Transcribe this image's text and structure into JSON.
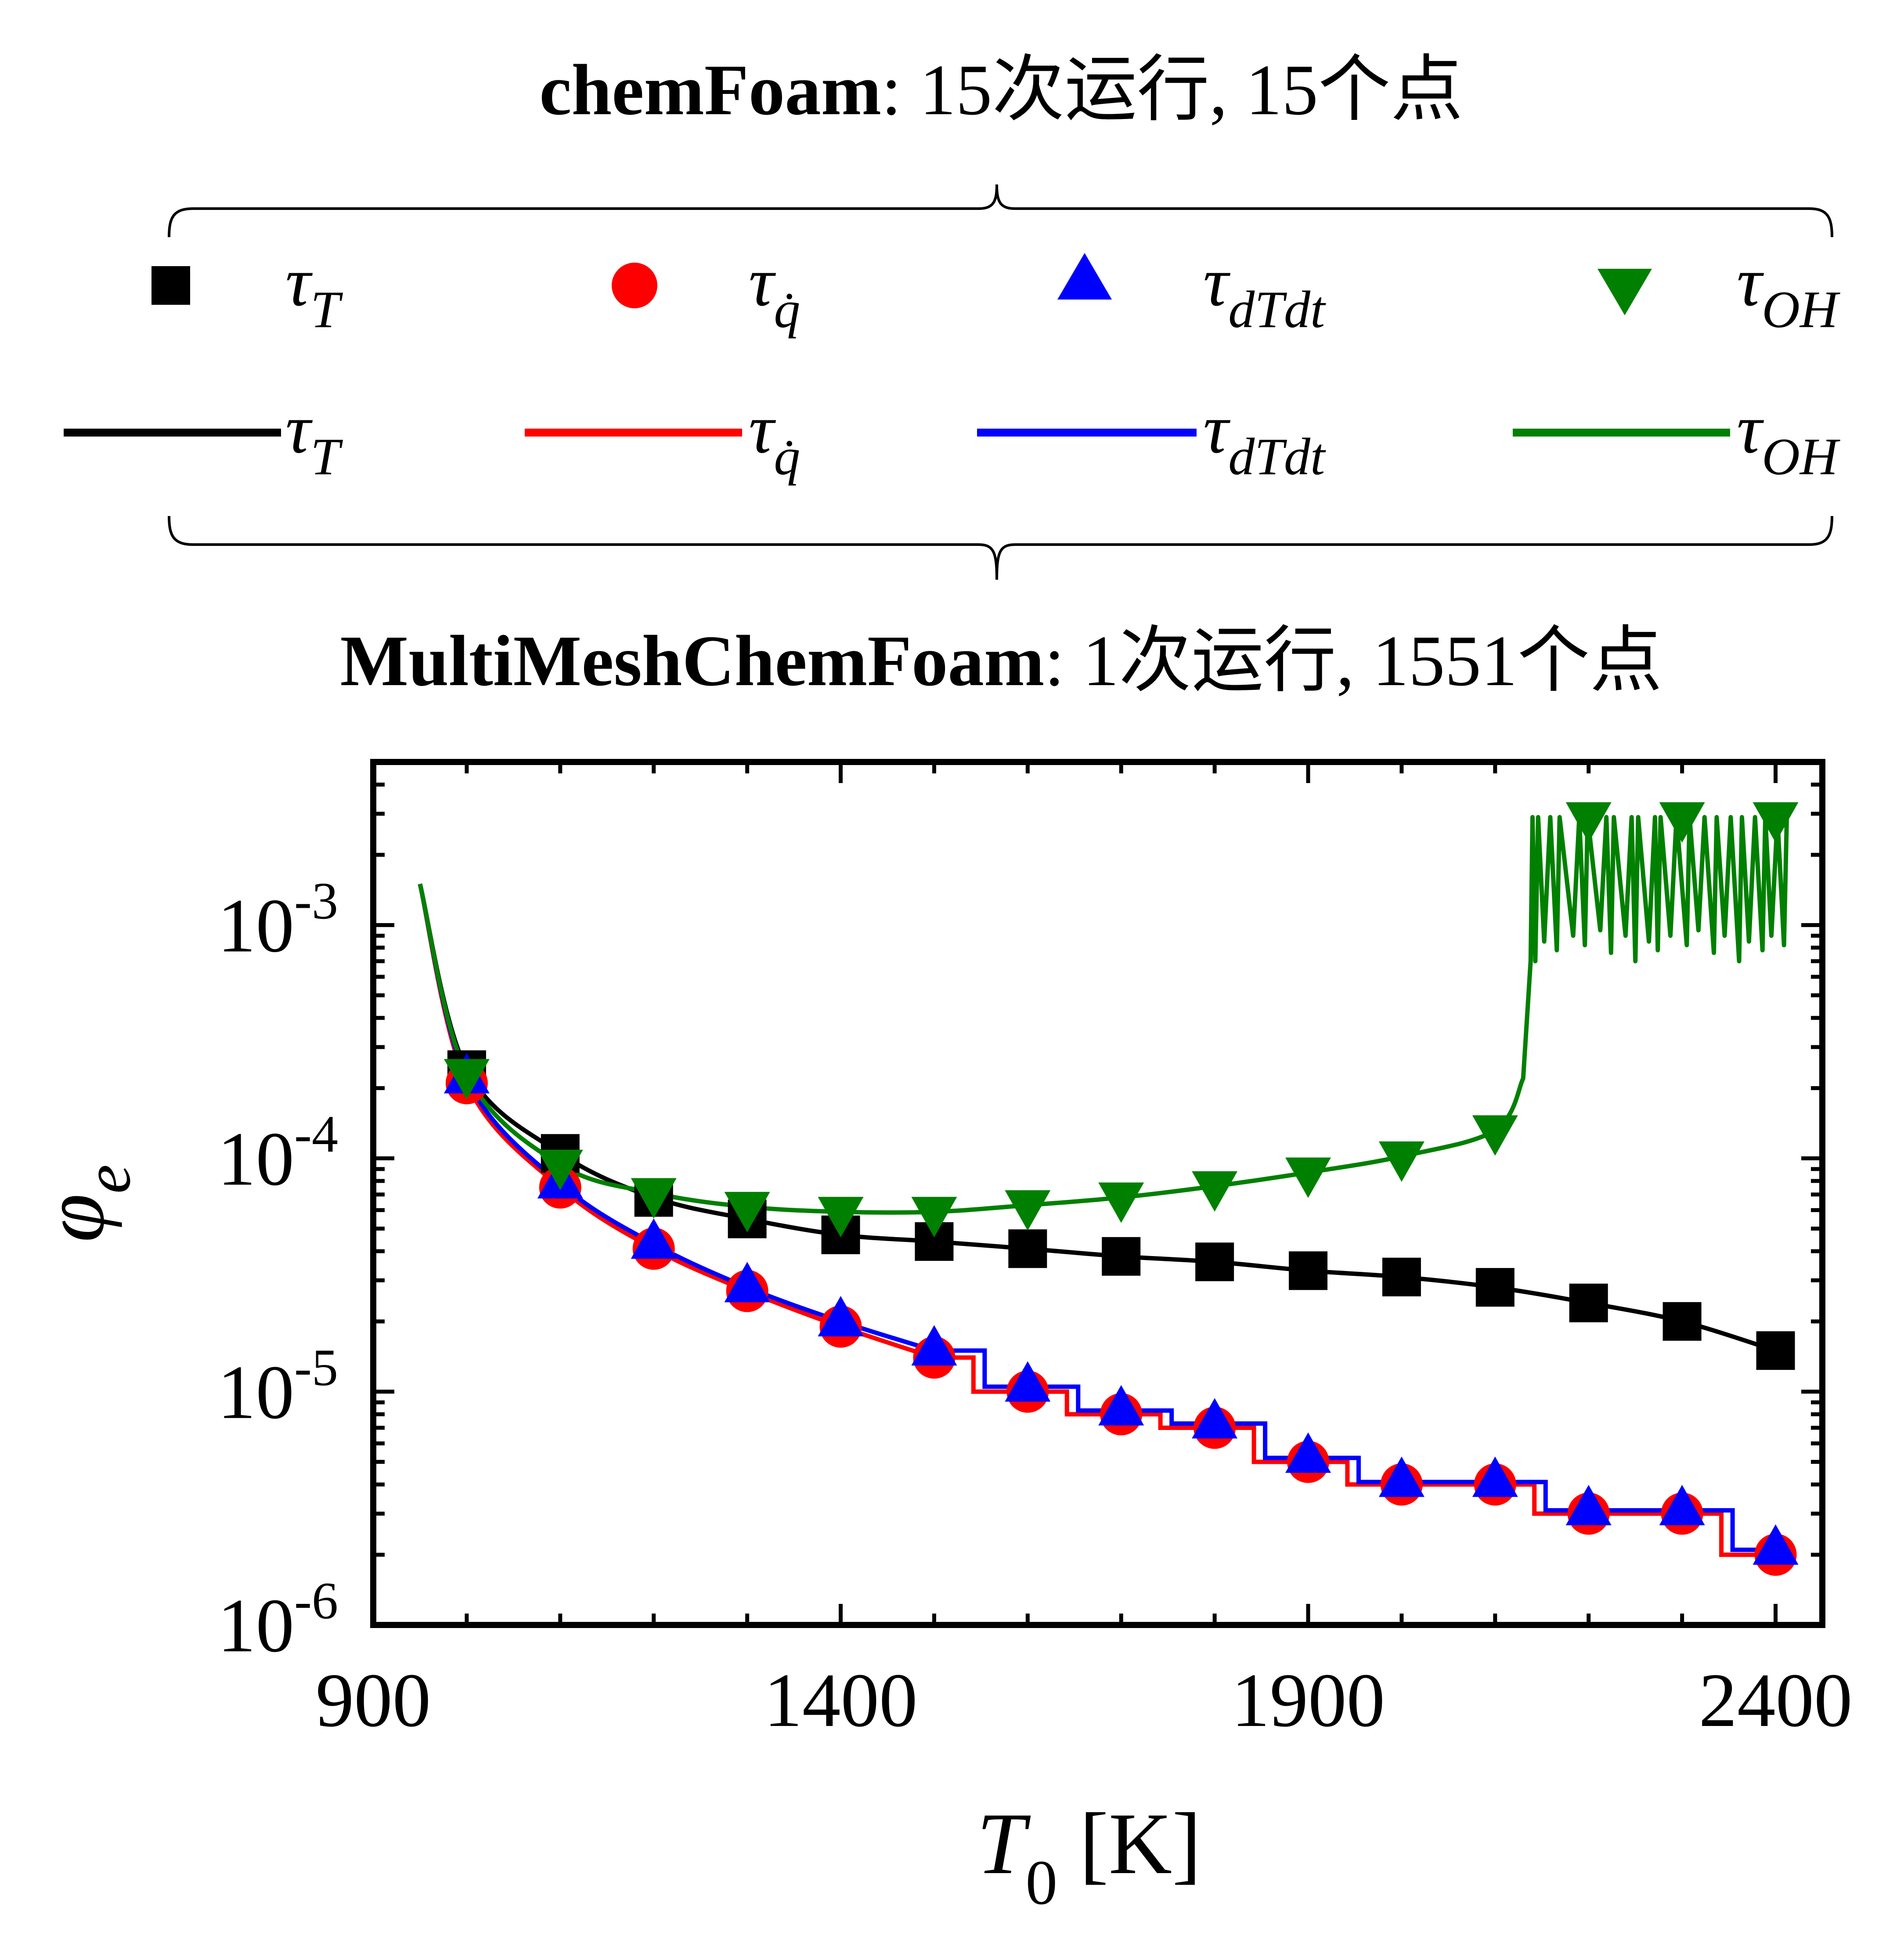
{
  "header": {
    "top_label": {
      "bold": "chemFoam",
      "rest": ": 15次运行, 15个点"
    },
    "bottom_label": {
      "bold": "MultiMeshChemFoam",
      "rest": ": 1次运行, 1551个点"
    }
  },
  "legend": {
    "markers": [
      {
        "symbol": "square",
        "color": "#000000",
        "label_main": "τ",
        "label_sub": "T"
      },
      {
        "symbol": "circle",
        "color": "#ff0000",
        "label_main": "τ",
        "label_sub": "q̇"
      },
      {
        "symbol": "triangle-up",
        "color": "#0000ff",
        "label_main": "τ",
        "label_sub": "dTdt"
      },
      {
        "symbol": "triangle-down",
        "color": "#008000",
        "label_main": "τ",
        "label_sub": "OH"
      }
    ],
    "lines": [
      {
        "color": "#000000",
        "label_main": "τ",
        "label_sub": "T"
      },
      {
        "color": "#ff0000",
        "label_main": "τ",
        "label_sub": "q̇"
      },
      {
        "color": "#0000ff",
        "label_main": "τ",
        "label_sub": "dTdt"
      },
      {
        "color": "#008000",
        "label_main": "τ",
        "label_sub": "OH"
      }
    ]
  },
  "chart_data": {
    "type": "scatter",
    "xlabel": {
      "main": "T",
      "sub": "0",
      "unit": " [K]"
    },
    "ylabel": {
      "main": "φ",
      "sub": "e"
    },
    "xlim": [
      900,
      2450
    ],
    "ylim": [
      1e-06,
      0.005
    ],
    "yscale": "log",
    "xticks": [
      900,
      1400,
      1900,
      2400
    ],
    "yticks": [
      {
        "value": 0.001,
        "base": "10",
        "exp": "-3"
      },
      {
        "value": 0.0001,
        "base": "10",
        "exp": "-4"
      },
      {
        "value": 1e-05,
        "base": "10",
        "exp": "-5"
      },
      {
        "value": 1e-06,
        "base": "10",
        "exp": "-6"
      }
    ],
    "grid": false,
    "x": [
      1000,
      1100,
      1200,
      1300,
      1400,
      1500,
      1600,
      1700,
      1800,
      1900,
      2000,
      2100,
      2200,
      2300,
      2400
    ],
    "series": [
      {
        "key": "tauT",
        "color": "#000000",
        "marker": "square",
        "values": [
          0.00024,
          0.000105,
          6.8e-05,
          5.5e-05,
          4.7e-05,
          4.4e-05,
          4.1e-05,
          3.8e-05,
          3.6e-05,
          3.3e-05,
          3.1e-05,
          2.8e-05,
          2.4e-05,
          2e-05,
          1.5e-05
        ]
      },
      {
        "key": "tauQ",
        "color": "#ff0000",
        "marker": "circle",
        "values": [
          0.00021,
          7.5e-05,
          4.1e-05,
          2.7e-05,
          1.9e-05,
          1.4e-05,
          1e-05,
          8e-06,
          7e-06,
          5e-06,
          4e-06,
          4e-06,
          3e-06,
          3e-06,
          2e-06
        ]
      },
      {
        "key": "tauDTdt",
        "color": "#0000ff",
        "marker": "triangle-up",
        "values": [
          0.00022,
          7.8e-05,
          4.3e-05,
          2.8e-05,
          2e-05,
          1.5e-05,
          1.05e-05,
          8.3e-06,
          7.3e-06,
          5.2e-06,
          4.1e-06,
          4.1e-06,
          3.1e-06,
          3.1e-06,
          2.1e-06
        ]
      },
      {
        "key": "tauOH",
        "color": "#008000",
        "marker": "triangle-down",
        "values": [
          0.00023,
          9.4e-05,
          7.1e-05,
          6.2e-05,
          5.9e-05,
          5.9e-05,
          6.3e-05,
          6.8e-05,
          7.6e-05,
          8.7e-05,
          0.000102,
          0.000132,
          0.0029,
          0.0029,
          0.0029
        ]
      }
    ]
  }
}
